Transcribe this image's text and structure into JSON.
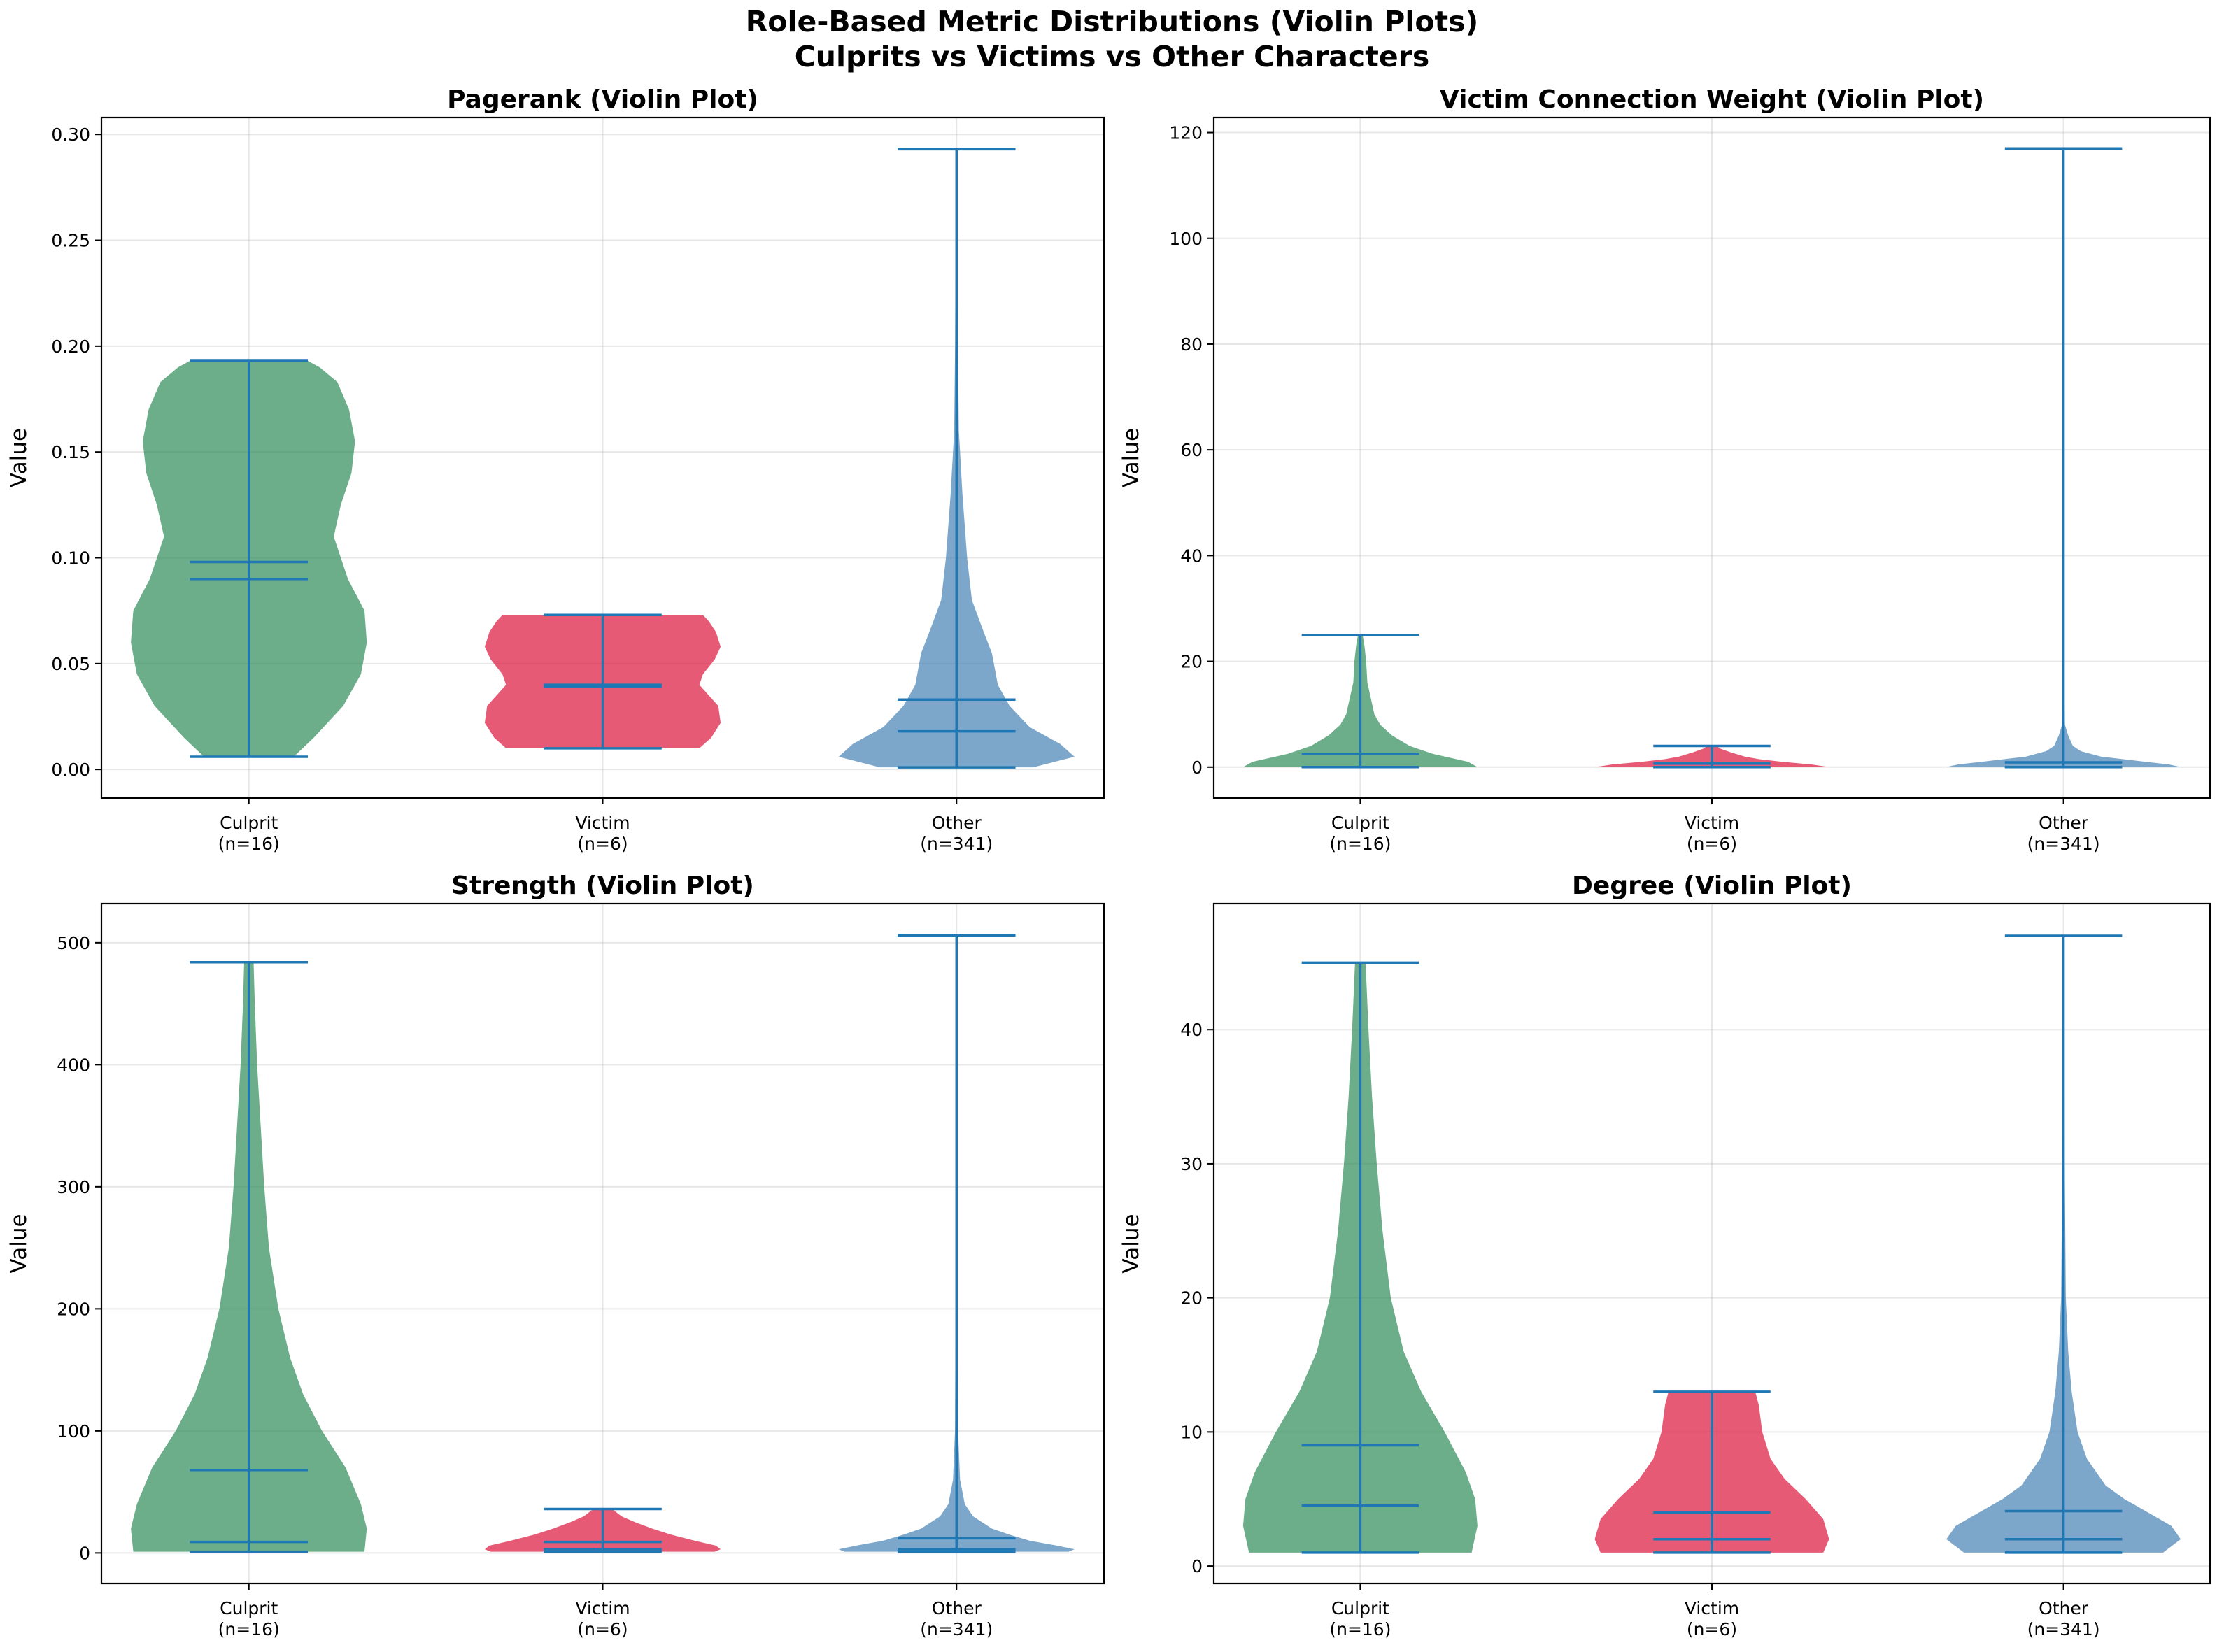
{
  "title_lines": [
    "Role-Based Metric Distributions (Violin Plots)",
    "Culprits vs Victims vs Other Characters"
  ],
  "colors": {
    "culprit": "#2E8B57",
    "victim": "#DC143C",
    "other": "#4682B4",
    "lines": "#1f77b4"
  },
  "chart_data": [
    {
      "type": "violin",
      "title": "Pagerank (Violin Plot)",
      "ylabel": "Value",
      "ylim": [
        -0.0135,
        0.308
      ],
      "yticks": [
        0.0,
        0.05,
        0.1,
        0.15,
        0.2,
        0.25,
        0.3
      ],
      "ytick_labels": [
        "0.00",
        "0.05",
        "0.10",
        "0.15",
        "0.20",
        "0.25",
        "0.30"
      ],
      "grid": true,
      "categories": [
        "Culprit\n(n=16)",
        "Victim\n(n=6)",
        "Other\n(n=341)"
      ],
      "series": [
        {
          "min": 0.006,
          "max": 0.193,
          "mean": 0.098,
          "median": 0.09,
          "profile": [
            [
              0.006,
              0.38
            ],
            [
              0.015,
              0.55
            ],
            [
              0.03,
              0.8
            ],
            [
              0.045,
              0.95
            ],
            [
              0.06,
              1.0
            ],
            [
              0.075,
              0.98
            ],
            [
              0.09,
              0.84
            ],
            [
              0.11,
              0.72
            ],
            [
              0.125,
              0.78
            ],
            [
              0.14,
              0.87
            ],
            [
              0.155,
              0.9
            ],
            [
              0.17,
              0.85
            ],
            [
              0.183,
              0.75
            ],
            [
              0.19,
              0.6
            ],
            [
              0.193,
              0.5
            ]
          ]
        },
        {
          "min": 0.01,
          "max": 0.073,
          "mean": 0.04,
          "median": 0.039,
          "profile": [
            [
              0.01,
              0.82
            ],
            [
              0.015,
              0.92
            ],
            [
              0.022,
              1.0
            ],
            [
              0.03,
              0.98
            ],
            [
              0.035,
              0.9
            ],
            [
              0.04,
              0.82
            ],
            [
              0.045,
              0.85
            ],
            [
              0.052,
              0.95
            ],
            [
              0.058,
              1.0
            ],
            [
              0.065,
              0.96
            ],
            [
              0.07,
              0.9
            ],
            [
              0.073,
              0.85
            ]
          ]
        },
        {
          "min": 0.001,
          "max": 0.293,
          "mean": 0.033,
          "median": 0.018,
          "profile": [
            [
              0.001,
              0.65
            ],
            [
              0.006,
              1.0
            ],
            [
              0.012,
              0.88
            ],
            [
              0.02,
              0.62
            ],
            [
              0.03,
              0.45
            ],
            [
              0.04,
              0.35
            ],
            [
              0.055,
              0.3
            ],
            [
              0.065,
              0.23
            ],
            [
              0.08,
              0.13
            ],
            [
              0.1,
              0.09
            ],
            [
              0.13,
              0.05
            ],
            [
              0.16,
              0.02
            ],
            [
              0.2,
              0.012
            ],
            [
              0.25,
              0.008
            ],
            [
              0.293,
              0.004
            ]
          ]
        }
      ]
    },
    {
      "type": "violin",
      "title": "Victim Connection Weight (Violin Plot)",
      "ylabel": "Value",
      "ylim": [
        -5.85,
        122.85
      ],
      "yticks": [
        0,
        20,
        40,
        60,
        80,
        100,
        120
      ],
      "ytick_labels": [
        "0",
        "20",
        "40",
        "60",
        "80",
        "100",
        "120"
      ],
      "grid": true,
      "categories": [
        "Culprit\n(n=16)",
        "Victim\n(n=6)",
        "Other\n(n=341)"
      ],
      "series": [
        {
          "min": 0,
          "max": 25,
          "mean": 2.5,
          "median": 0,
          "profile": [
            [
              0,
              1.0
            ],
            [
              1,
              0.92
            ],
            [
              2.5,
              0.62
            ],
            [
              4,
              0.42
            ],
            [
              6,
              0.27
            ],
            [
              8,
              0.17
            ],
            [
              10,
              0.12
            ],
            [
              13,
              0.09
            ],
            [
              16,
              0.06
            ],
            [
              20,
              0.05
            ],
            [
              23,
              0.035
            ],
            [
              25,
              0.02
            ]
          ]
        },
        {
          "min": 0,
          "max": 4,
          "mean": 0.67,
          "median": 0,
          "profile": [
            [
              0,
              1.0
            ],
            [
              0.5,
              0.85
            ],
            [
              1,
              0.6
            ],
            [
              1.5,
              0.4
            ],
            [
              2,
              0.28
            ],
            [
              2.8,
              0.16
            ],
            [
              3.5,
              0.07
            ],
            [
              4,
              0.04
            ]
          ]
        },
        {
          "min": 0,
          "max": 117,
          "mean": 0.9,
          "median": 0,
          "profile": [
            [
              0,
              1.0
            ],
            [
              0.5,
              0.9
            ],
            [
              1,
              0.7
            ],
            [
              2,
              0.32
            ],
            [
              3,
              0.15
            ],
            [
              4,
              0.08
            ],
            [
              5,
              0.06
            ],
            [
              6,
              0.04
            ],
            [
              8,
              0.012
            ],
            [
              15,
              0.006
            ],
            [
              40,
              0.004
            ],
            [
              80,
              0.003
            ],
            [
              117,
              0.002
            ]
          ]
        }
      ]
    },
    {
      "type": "violin",
      "title": "Strength (Violin Plot)",
      "ylabel": "Value",
      "ylim": [
        -25,
        532
      ],
      "yticks": [
        0,
        100,
        200,
        300,
        400,
        500
      ],
      "ytick_labels": [
        "0",
        "100",
        "200",
        "300",
        "400",
        "500"
      ],
      "grid": true,
      "categories": [
        "Culprit\n(n=16)",
        "Victim\n(n=6)",
        "Other\n(n=341)"
      ],
      "series": [
        {
          "min": 1,
          "max": 484,
          "mean": 68,
          "median": 9,
          "profile": [
            [
              1,
              0.98
            ],
            [
              20,
              1.0
            ],
            [
              40,
              0.95
            ],
            [
              70,
              0.82
            ],
            [
              100,
              0.62
            ],
            [
              130,
              0.46
            ],
            [
              160,
              0.35
            ],
            [
              200,
              0.25
            ],
            [
              250,
              0.17
            ],
            [
              300,
              0.13
            ],
            [
              350,
              0.1
            ],
            [
              400,
              0.07
            ],
            [
              450,
              0.05
            ],
            [
              484,
              0.04
            ]
          ]
        },
        {
          "min": 1,
          "max": 36,
          "mean": 9,
          "median": 3,
          "profile": [
            [
              1,
              0.95
            ],
            [
              3,
              1.0
            ],
            [
              6,
              0.96
            ],
            [
              10,
              0.78
            ],
            [
              15,
              0.58
            ],
            [
              20,
              0.42
            ],
            [
              25,
              0.28
            ],
            [
              30,
              0.16
            ],
            [
              36,
              0.08
            ]
          ]
        },
        {
          "min": 1,
          "max": 506,
          "mean": 12,
          "median": 3,
          "profile": [
            [
              1,
              0.95
            ],
            [
              3,
              1.0
            ],
            [
              6,
              0.85
            ],
            [
              10,
              0.62
            ],
            [
              15,
              0.45
            ],
            [
              20,
              0.3
            ],
            [
              30,
              0.14
            ],
            [
              40,
              0.07
            ],
            [
              60,
              0.03
            ],
            [
              100,
              0.013
            ],
            [
              200,
              0.008
            ],
            [
              300,
              0.006
            ],
            [
              506,
              0.004
            ]
          ]
        }
      ]
    },
    {
      "type": "violin",
      "title": "Degree (Violin Plot)",
      "ylabel": "Value",
      "ylim": [
        -1.3,
        49.4
      ],
      "yticks": [
        0,
        10,
        20,
        30,
        40
      ],
      "ytick_labels": [
        "0",
        "10",
        "20",
        "30",
        "40"
      ],
      "grid": true,
      "categories": [
        "Culprit\n(n=16)",
        "Victim\n(n=6)",
        "Other\n(n=341)"
      ],
      "series": [
        {
          "min": 1,
          "max": 45,
          "mean": 9,
          "median": 4.5,
          "profile": [
            [
              1,
              0.95
            ],
            [
              3,
              1.0
            ],
            [
              5,
              0.98
            ],
            [
              7,
              0.9
            ],
            [
              10,
              0.72
            ],
            [
              13,
              0.52
            ],
            [
              16,
              0.37
            ],
            [
              20,
              0.26
            ],
            [
              25,
              0.19
            ],
            [
              30,
              0.14
            ],
            [
              35,
              0.1
            ],
            [
              40,
              0.07
            ],
            [
              45,
              0.045
            ]
          ]
        },
        {
          "min": 1,
          "max": 13,
          "mean": 4,
          "median": 2,
          "profile": [
            [
              1,
              0.95
            ],
            [
              2,
              1.0
            ],
            [
              3.5,
              0.95
            ],
            [
              5,
              0.8
            ],
            [
              6.5,
              0.62
            ],
            [
              8,
              0.5
            ],
            [
              10,
              0.43
            ],
            [
              12,
              0.4
            ],
            [
              13,
              0.37
            ]
          ]
        },
        {
          "min": 1,
          "max": 47,
          "mean": 4.1,
          "median": 2,
          "profile": [
            [
              1,
              0.85
            ],
            [
              2,
              1.0
            ],
            [
              3,
              0.92
            ],
            [
              4,
              0.72
            ],
            [
              5,
              0.52
            ],
            [
              6,
              0.36
            ],
            [
              8,
              0.2
            ],
            [
              10,
              0.12
            ],
            [
              13,
              0.07
            ],
            [
              16,
              0.04
            ],
            [
              20,
              0.02
            ],
            [
              30,
              0.01
            ],
            [
              47,
              0.005
            ]
          ]
        }
      ]
    }
  ]
}
